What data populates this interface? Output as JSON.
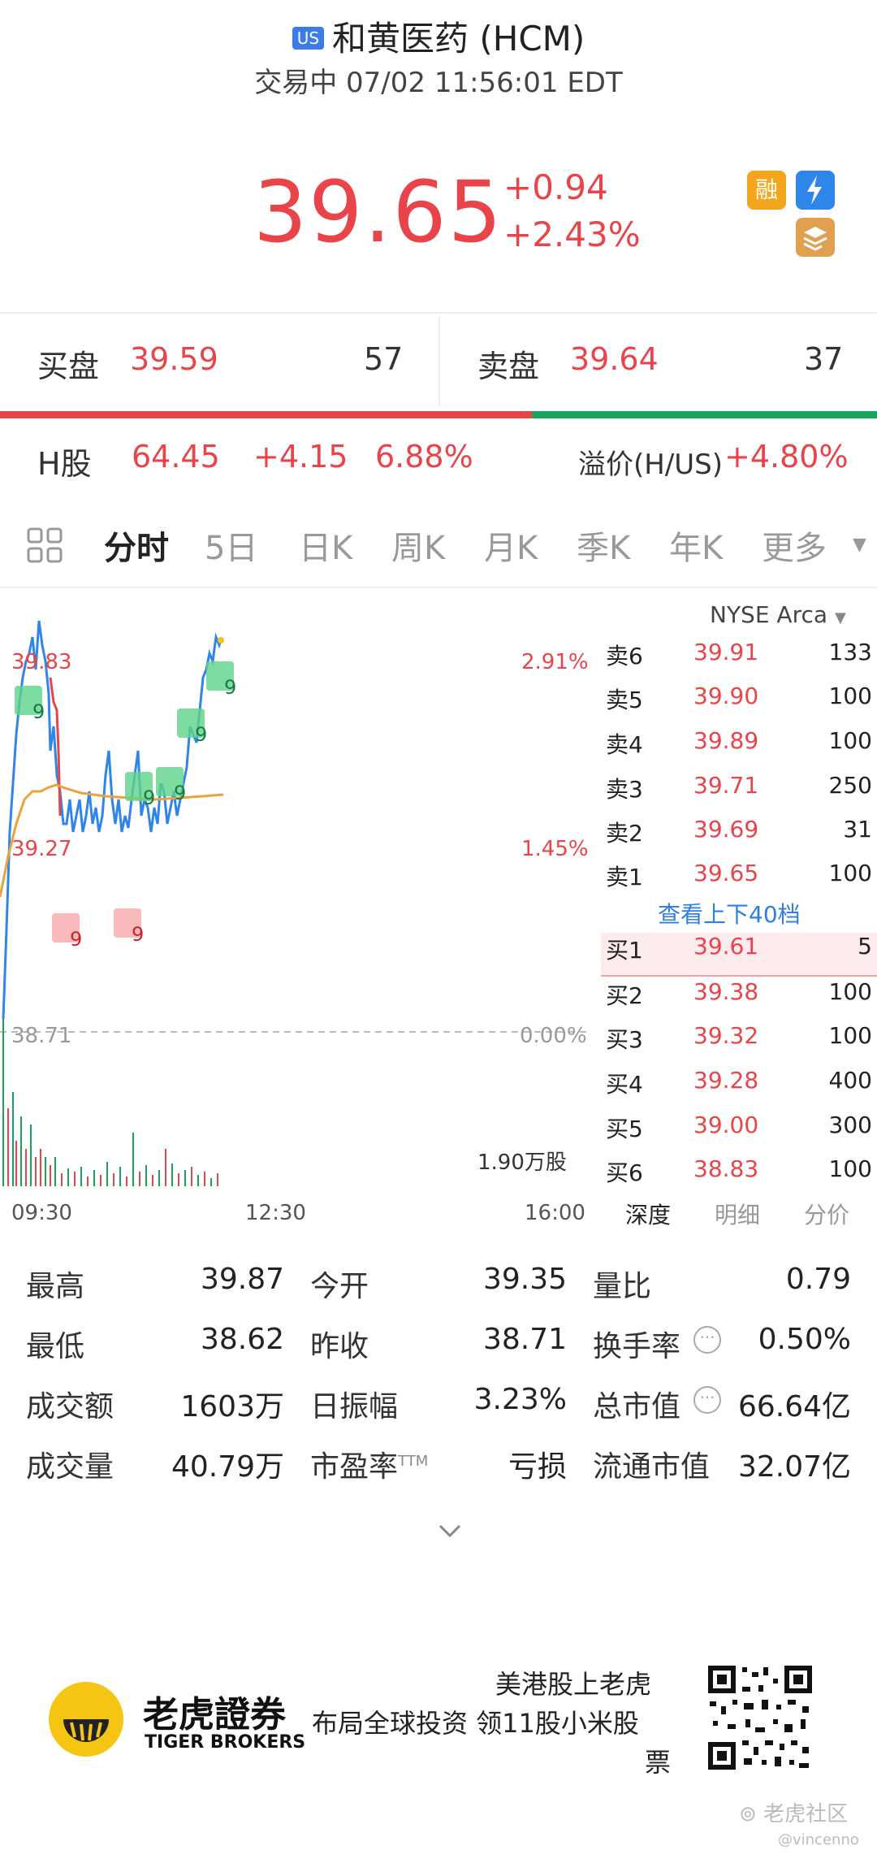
{
  "header": {
    "market_badge": "US",
    "title": "和黄医药 (HCM)",
    "status": "交易中 07/02 11:56:01 EDT"
  },
  "quote": {
    "price": "39.65",
    "change": "+0.94",
    "change_pct": "+2.43%",
    "badges": {
      "margin": "融",
      "lightning": "1",
      "tier": "A"
    }
  },
  "bid": {
    "label": "买盘",
    "price": "39.59",
    "size": "57"
  },
  "ask": {
    "label": "卖盘",
    "price": "39.64",
    "size": "37"
  },
  "h_share": {
    "label": "H股",
    "price": "64.45",
    "change": "+4.15",
    "pct": "6.88%",
    "premium_label": "溢价(H/US)",
    "premium": "+4.80%"
  },
  "tabs": [
    "分时",
    "5日",
    "日K",
    "周K",
    "月K",
    "季K",
    "年K",
    "更多"
  ],
  "chart": {
    "high_label": "39.83",
    "mid_label": "39.27",
    "base_label": "38.71",
    "pct_top": "2.91%",
    "pct_mid": "1.45%",
    "pct_base": "0.00%",
    "volume_label": "1.90万股",
    "times": [
      "09:30",
      "12:30",
      "16:00"
    ],
    "markers_green": [
      "9",
      "9",
      "9",
      "9",
      "9",
      "9"
    ],
    "markers_red": [
      "9",
      "9"
    ]
  },
  "orderbook": {
    "exchange": "NYSE Arca",
    "asks": [
      {
        "label": "卖6",
        "price": "39.91",
        "size": "133"
      },
      {
        "label": "卖5",
        "price": "39.90",
        "size": "100"
      },
      {
        "label": "卖4",
        "price": "39.89",
        "size": "100"
      },
      {
        "label": "卖3",
        "price": "39.71",
        "size": "250"
      },
      {
        "label": "卖2",
        "price": "39.69",
        "size": "31"
      },
      {
        "label": "卖1",
        "price": "39.65",
        "size": "100"
      }
    ],
    "more_link": "查看上下40档",
    "bids": [
      {
        "label": "买1",
        "price": "39.61",
        "size": "5"
      },
      {
        "label": "买2",
        "price": "39.38",
        "size": "100"
      },
      {
        "label": "买3",
        "price": "39.32",
        "size": "100"
      },
      {
        "label": "买4",
        "price": "39.28",
        "size": "400"
      },
      {
        "label": "买5",
        "price": "39.00",
        "size": "300"
      },
      {
        "label": "买6",
        "price": "38.83",
        "size": "100"
      }
    ],
    "subtabs": [
      "深度",
      "明细",
      "分价"
    ]
  },
  "stats": [
    [
      {
        "label": "最高",
        "value": "39.87"
      },
      {
        "label": "今开",
        "value": "39.35"
      },
      {
        "label": "量比",
        "value": "0.79"
      }
    ],
    [
      {
        "label": "最低",
        "value": "38.62"
      },
      {
        "label": "昨收",
        "value": "38.71"
      },
      {
        "label": "换手率",
        "value": "0.50%"
      }
    ],
    [
      {
        "label": "成交额",
        "value": "1603万"
      },
      {
        "label": "日振幅",
        "value": "3.23%"
      },
      {
        "label": "总市值",
        "value": "66.64亿"
      }
    ],
    [
      {
        "label": "成交量",
        "value": "40.79万"
      },
      {
        "label": "市盈率",
        "sup": "TTM",
        "value": "亏损"
      },
      {
        "label": "流通市值",
        "value": "32.07亿"
      }
    ]
  ],
  "footer": {
    "brand_cn": "老虎證券",
    "brand_en": "TIGER BROKERS",
    "slogan1": "美港股上老虎",
    "slogan2": "布局全球投资 领11股小米股",
    "slogan3": "票",
    "watermark": "老虎社区",
    "watermark_user": "@vincenno"
  }
}
